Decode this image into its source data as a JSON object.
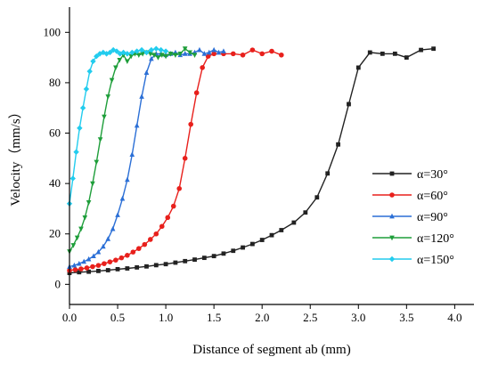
{
  "chart_data": {
    "type": "line",
    "xlabel": "Distance of segment ab (mm)",
    "ylabel": "Velocity（mm/s）",
    "xlim": [
      0.0,
      4.2
    ],
    "ylim": [
      -8,
      110
    ],
    "xticks": [
      0.0,
      0.5,
      1.0,
      1.5,
      2.0,
      2.5,
      3.0,
      3.5,
      4.0
    ],
    "xtick_labels": [
      "0.0",
      "0.5",
      "1.0",
      "1.5",
      "2.0",
      "2.5",
      "3.0",
      "3.5",
      "4.0"
    ],
    "yticks": [
      0,
      20,
      40,
      60,
      80,
      100
    ],
    "ytick_labels": [
      "0",
      "20",
      "40",
      "60",
      "80",
      "100"
    ],
    "grid": false,
    "legend_position": "right",
    "series": [
      {
        "name": "α=30°",
        "color": "#222222",
        "marker": "square",
        "x": [
          0.0,
          0.1,
          0.2,
          0.3,
          0.4,
          0.5,
          0.6,
          0.7,
          0.8,
          0.9,
          1.0,
          1.1,
          1.2,
          1.3,
          1.4,
          1.5,
          1.6,
          1.7,
          1.8,
          1.9,
          2.0,
          2.1,
          2.2,
          2.33,
          2.45,
          2.57,
          2.68,
          2.79,
          2.9,
          3.0,
          3.12,
          3.25,
          3.38,
          3.5,
          3.65,
          3.78
        ],
        "y": [
          4.5,
          4.8,
          5.0,
          5.3,
          5.6,
          6.0,
          6.3,
          6.7,
          7.1,
          7.6,
          8.0,
          8.6,
          9.2,
          9.8,
          10.5,
          11.2,
          12.2,
          13.3,
          14.6,
          16.0,
          17.6,
          19.5,
          21.5,
          24.5,
          28.5,
          34.5,
          44.0,
          55.5,
          71.5,
          86.0,
          92.0,
          91.5,
          91.5,
          90.0,
          93.0,
          93.5
        ]
      },
      {
        "name": "α=60°",
        "color": "#e8201c",
        "marker": "circle",
        "x": [
          0.0,
          0.06,
          0.12,
          0.18,
          0.24,
          0.3,
          0.36,
          0.42,
          0.48,
          0.54,
          0.6,
          0.66,
          0.72,
          0.78,
          0.84,
          0.9,
          0.96,
          1.02,
          1.08,
          1.14,
          1.2,
          1.26,
          1.32,
          1.38,
          1.44,
          1.5,
          1.6,
          1.7,
          1.8,
          1.9,
          2.0,
          2.1,
          2.2
        ],
        "y": [
          5.5,
          5.8,
          6.1,
          6.5,
          7.0,
          7.5,
          8.2,
          8.9,
          9.6,
          10.5,
          11.5,
          12.8,
          14.2,
          15.8,
          17.8,
          20.0,
          23.0,
          26.5,
          31.0,
          38.0,
          50.0,
          63.5,
          76.0,
          86.0,
          90.5,
          91.5,
          91.5,
          91.5,
          91.0,
          93.0,
          91.5,
          92.5,
          91.0
        ]
      },
      {
        "name": "α=90°",
        "color": "#2b6fd6",
        "marker": "triangle-up",
        "x": [
          0.0,
          0.05,
          0.1,
          0.15,
          0.2,
          0.25,
          0.3,
          0.35,
          0.4,
          0.45,
          0.5,
          0.55,
          0.6,
          0.65,
          0.7,
          0.75,
          0.8,
          0.85,
          0.9,
          0.95,
          1.0,
          1.05,
          1.1,
          1.15,
          1.2,
          1.25,
          1.3,
          1.35,
          1.4,
          1.45,
          1.5,
          1.55,
          1.6
        ],
        "y": [
          7.0,
          7.5,
          8.2,
          9.0,
          10.0,
          11.2,
          12.8,
          15.0,
          18.0,
          22.0,
          27.5,
          34.0,
          41.5,
          51.5,
          63.0,
          74.5,
          84.0,
          89.5,
          91.5,
          91.5,
          91.0,
          91.5,
          92.0,
          91.0,
          91.5,
          91.5,
          92.0,
          93.0,
          91.5,
          92.0,
          93.0,
          92.0,
          92.5
        ]
      },
      {
        "name": "α=120°",
        "color": "#1e9e3a",
        "marker": "triangle-down",
        "x": [
          0.0,
          0.04,
          0.08,
          0.12,
          0.16,
          0.2,
          0.24,
          0.28,
          0.32,
          0.36,
          0.4,
          0.44,
          0.48,
          0.52,
          0.56,
          0.6,
          0.64,
          0.68,
          0.72,
          0.76,
          0.8,
          0.84,
          0.88,
          0.92,
          0.96,
          1.0,
          1.05,
          1.1,
          1.15,
          1.2,
          1.25,
          1.3
        ],
        "y": [
          13.0,
          15.5,
          18.5,
          22.0,
          26.5,
          32.5,
          40.0,
          48.5,
          57.5,
          66.5,
          74.5,
          81.0,
          86.0,
          89.0,
          91.0,
          88.5,
          90.5,
          91.5,
          91.0,
          91.5,
          92.0,
          91.5,
          91.0,
          90.0,
          91.0,
          90.5,
          91.5,
          91.0,
          91.5,
          93.5,
          92.0,
          91.0
        ]
      },
      {
        "name": "α=150°",
        "color": "#22ccee",
        "marker": "diamond",
        "x": [
          0.0,
          0.035,
          0.07,
          0.105,
          0.14,
          0.175,
          0.21,
          0.245,
          0.28,
          0.315,
          0.35,
          0.385,
          0.42,
          0.455,
          0.49,
          0.525,
          0.56,
          0.6,
          0.65,
          0.7,
          0.75,
          0.8,
          0.85,
          0.9,
          0.95,
          1.0
        ],
        "y": [
          32.0,
          42.0,
          52.5,
          62.0,
          70.0,
          77.5,
          84.5,
          88.5,
          90.5,
          91.5,
          92.0,
          91.5,
          92.0,
          93.0,
          92.5,
          91.5,
          92.0,
          91.5,
          92.0,
          92.5,
          93.0,
          92.0,
          93.0,
          93.5,
          93.0,
          92.5
        ]
      }
    ]
  }
}
